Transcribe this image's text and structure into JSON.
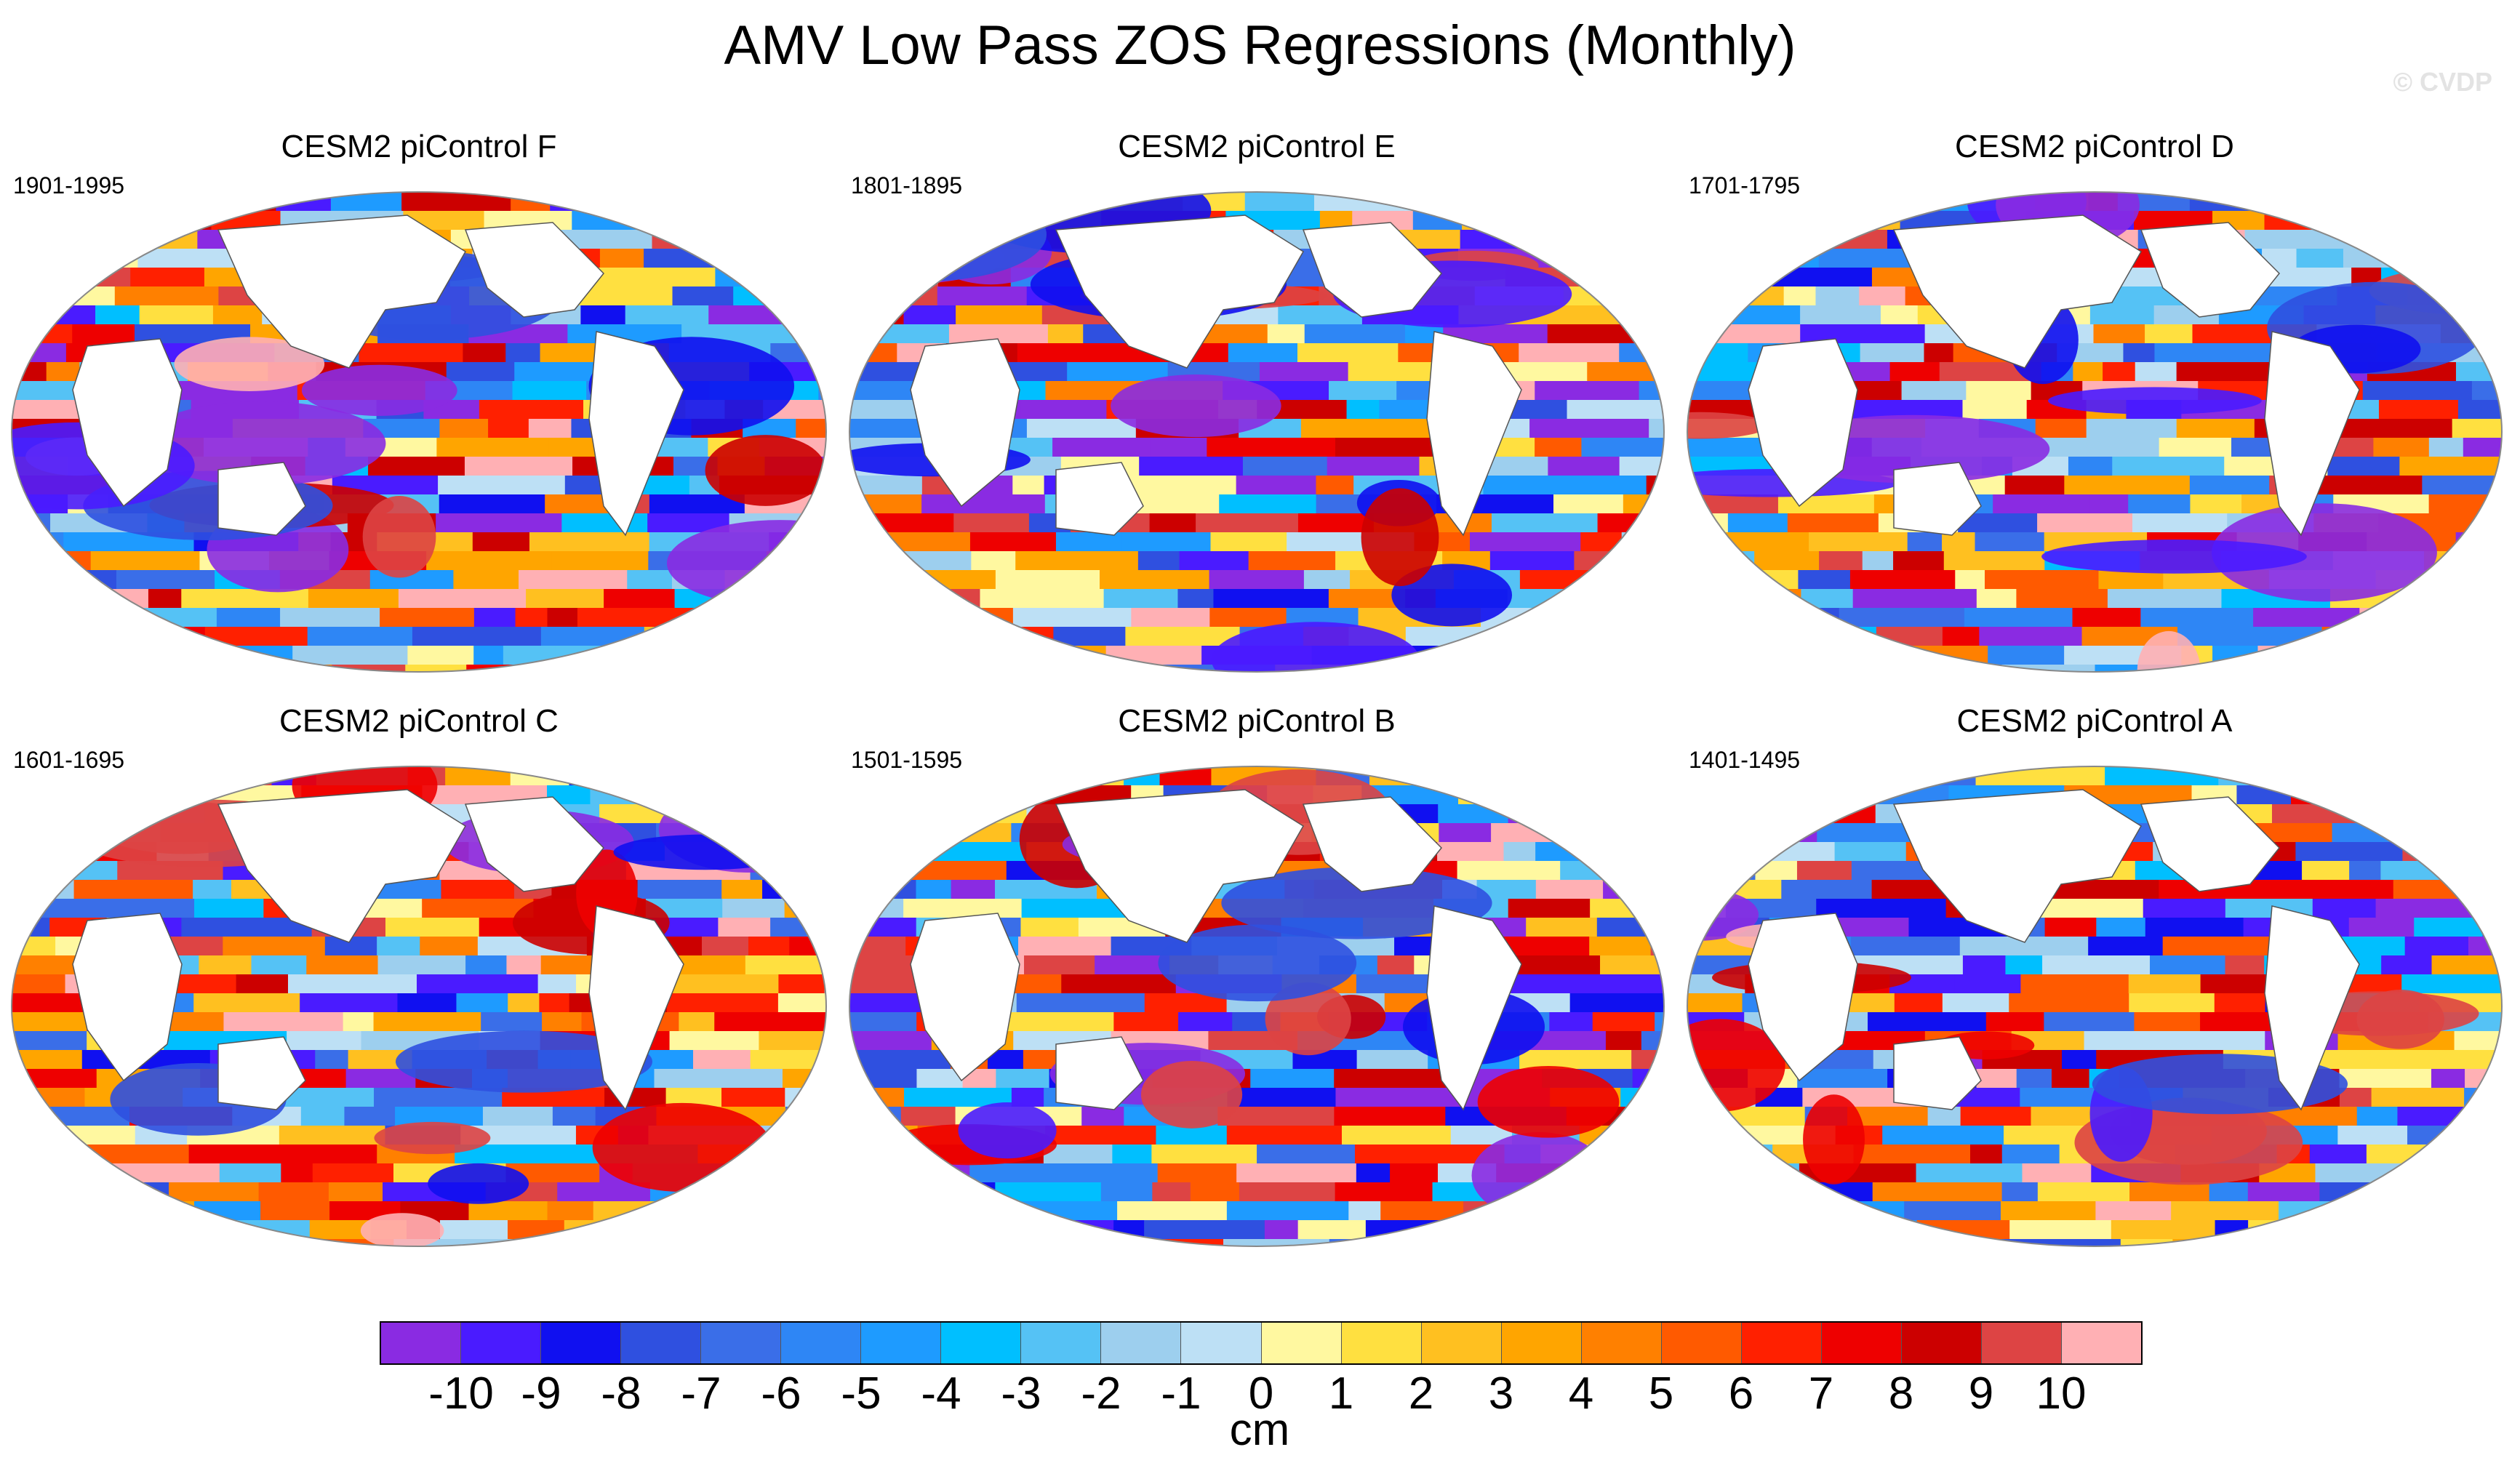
{
  "figure": {
    "title": "AMV Low Pass ZOS Regressions (Monthly)",
    "watermark": "© CVDP"
  },
  "panels": [
    {
      "title": "CESM2 piControl F",
      "years": "1901-1995"
    },
    {
      "title": "CESM2 piControl E",
      "years": "1801-1895"
    },
    {
      "title": "CESM2 piControl D",
      "years": "1701-1795"
    },
    {
      "title": "CESM2 piControl C",
      "years": "1601-1695"
    },
    {
      "title": "CESM2 piControl B",
      "years": "1501-1595"
    },
    {
      "title": "CESM2 piControl A",
      "years": "1401-1495"
    }
  ],
  "colorbar": {
    "units": "cm",
    "labels": [
      "-10",
      "-9",
      "-8",
      "-7",
      "-6",
      "-5",
      "-4",
      "-3",
      "-2",
      "-1",
      "0",
      "1",
      "2",
      "3",
      "4",
      "5",
      "6",
      "7",
      "8",
      "9",
      "10"
    ],
    "colors": [
      "#8a2be2",
      "#4a1bff",
      "#1010f0",
      "#2f50e0",
      "#3a6ee8",
      "#2e86f5",
      "#1e9bff",
      "#00bfff",
      "#55c2f5",
      "#9dcfee",
      "#bde0f5",
      "#fff8a0",
      "#ffe040",
      "#ffc020",
      "#ffa500",
      "#ff8000",
      "#ff5a00",
      "#ff2000",
      "#ee0000",
      "#cc0000",
      "#dd4444",
      "#ffb0b4"
    ]
  }
}
